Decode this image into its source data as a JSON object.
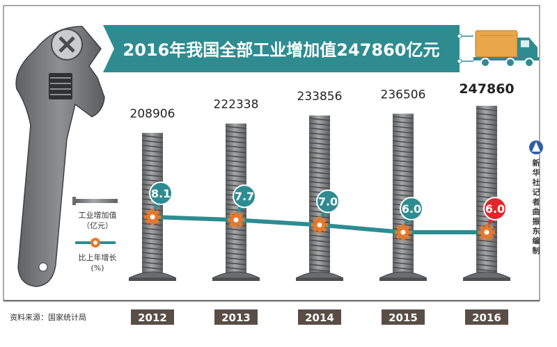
{
  "title": "2016年我国全部工业增加值247860亿元",
  "source": "资料来源：国家统计局",
  "credit": [
    "新",
    "华",
    "社",
    "记",
    "者",
    "曲",
    "振",
    "东",
    "编",
    "制"
  ],
  "legend": {
    "bar_label_1": "工业增加值",
    "bar_label_2": "（亿元）",
    "line_label_1": "比上年增长",
    "line_label_2": "(%)"
  },
  "colors": {
    "teal": "#2e8c91",
    "bolt": "#7d7f80",
    "gear": "#e7782a",
    "highlight": "#e2262b",
    "year_bg": "#5a4d45",
    "truck": "#e8a74a"
  },
  "chart_data": {
    "type": "bar",
    "title": "2016年我国全部工业增加值247860亿元",
    "categories": [
      "2012",
      "2013",
      "2014",
      "2015",
      "2016"
    ],
    "series": [
      {
        "name": "工业增加值（亿元）",
        "values": [
          208906,
          222338,
          233856,
          236506,
          247860
        ]
      },
      {
        "name": "比上年增长(%)",
        "type": "line",
        "values": [
          8.1,
          7.7,
          7.0,
          6.0,
          6.0
        ]
      }
    ],
    "value_labels": [
      "208906",
      "222338",
      "233856",
      "236506",
      "247860"
    ],
    "growth_labels": [
      "8.1",
      "7.7",
      "7.0",
      "6.0",
      "6.0"
    ],
    "highlight_index": 4
  }
}
